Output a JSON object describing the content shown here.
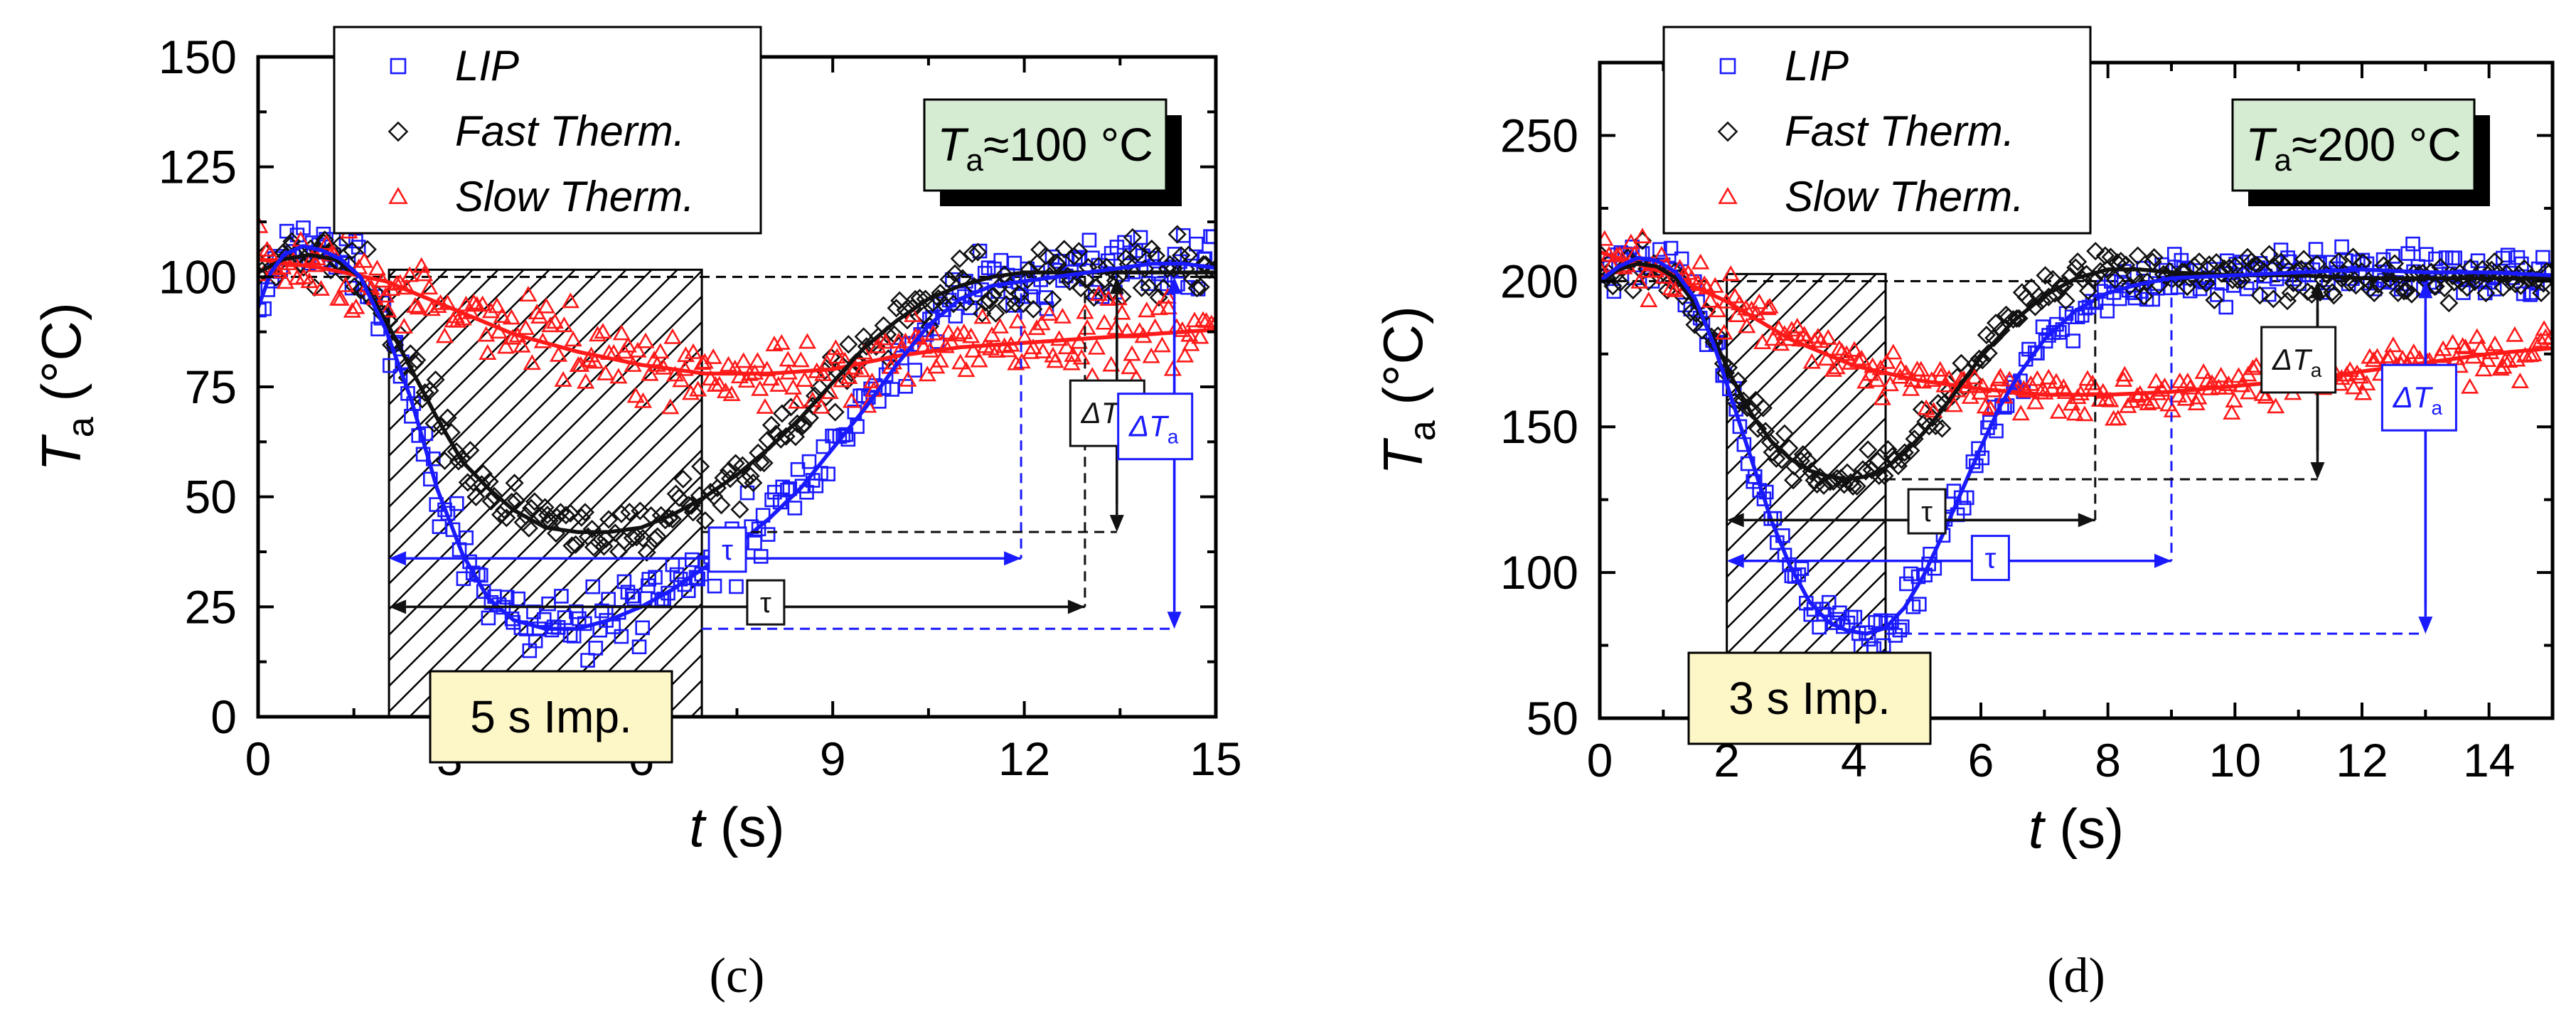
{
  "colors": {
    "lip": "#1a1aff",
    "fast": "#111111",
    "slow": "#ff1a1a",
    "box_green": "#d5ecd2",
    "box_yellow": "#fdf6c7"
  },
  "chart_data": [
    {
      "type": "scatter",
      "panel_label": "(c)",
      "xlabel_symbol": "t",
      "xlabel_unit": "(s)",
      "ylabel_symbol": "T",
      "ylabel_sub": "a",
      "ylabel_unit": "(°C)",
      "xlim": [
        0,
        15
      ],
      "ylim": [
        0,
        150
      ],
      "xticks": [
        0,
        3,
        6,
        9,
        12,
        15
      ],
      "yticks": [
        0,
        25,
        50,
        75,
        100,
        125,
        150
      ],
      "legend": [
        "LIP",
        "Fast Therm.",
        "Slow Therm."
      ],
      "title_box": {
        "sym": "T",
        "sub": "a",
        "rest": "≈100 °C"
      },
      "impulse_label": "5 s Imp.",
      "impulse": [
        2.05,
        6.95
      ],
      "reference": 100,
      "series": [
        {
          "name": "LIP",
          "curve": [
            [
              0.0,
              93
            ],
            [
              0.2,
              101
            ],
            [
              0.4,
              105
            ],
            [
              0.7,
              107
            ],
            [
              1.0,
              106
            ],
            [
              1.3,
              104
            ],
            [
              1.6,
              100
            ],
            [
              2.0,
              88
            ],
            [
              2.4,
              72
            ],
            [
              2.8,
              52
            ],
            [
              3.2,
              37
            ],
            [
              3.6,
              27
            ],
            [
              4.0,
              22
            ],
            [
              4.5,
              20
            ],
            [
              5.0,
              20
            ],
            [
              5.5,
              22
            ],
            [
              6.0,
              25
            ],
            [
              6.5,
              29
            ],
            [
              7.0,
              34
            ],
            [
              7.5,
              39
            ],
            [
              8.0,
              45
            ],
            [
              8.5,
              52
            ],
            [
              9.0,
              61
            ],
            [
              9.5,
              70
            ],
            [
              10.0,
              80
            ],
            [
              10.5,
              89
            ],
            [
              11.0,
              95
            ],
            [
              11.5,
              98
            ],
            [
              12.0,
              99
            ],
            [
              12.5,
              100
            ],
            [
              13.0,
              101
            ],
            [
              13.5,
              102
            ],
            [
              14.0,
              103
            ],
            [
              14.5,
              103
            ],
            [
              15.0,
              102
            ]
          ],
          "scatter_amp": 7
        },
        {
          "name": "Fast Therm.",
          "curve": [
            [
              0.0,
              101
            ],
            [
              0.4,
              104
            ],
            [
              0.8,
              105
            ],
            [
              1.2,
              104
            ],
            [
              1.6,
              100
            ],
            [
              2.0,
              90
            ],
            [
              2.4,
              79
            ],
            [
              2.8,
              68
            ],
            [
              3.2,
              58
            ],
            [
              3.6,
              52
            ],
            [
              4.0,
              47
            ],
            [
              4.5,
              43
            ],
            [
              5.0,
              42
            ],
            [
              5.5,
              42
            ],
            [
              6.0,
              43
            ],
            [
              6.5,
              46
            ],
            [
              7.0,
              50
            ],
            [
              7.5,
              55
            ],
            [
              8.0,
              61
            ],
            [
              8.5,
              68
            ],
            [
              9.0,
              76
            ],
            [
              9.5,
              84
            ],
            [
              10.0,
              90
            ],
            [
              10.5,
              95
            ],
            [
              11.0,
              98
            ],
            [
              11.5,
              100
            ],
            [
              12.0,
              101
            ],
            [
              12.5,
              101
            ],
            [
              13.0,
              101
            ],
            [
              13.5,
              101
            ],
            [
              14.0,
              101
            ],
            [
              14.5,
              101
            ],
            [
              15.0,
              101
            ]
          ],
          "scatter_amp": 7
        },
        {
          "name": "Slow Therm.",
          "curve": [
            [
              0.0,
              104
            ],
            [
              1.0,
              102
            ],
            [
              2.0,
              99
            ],
            [
              3.0,
              93
            ],
            [
              4.0,
              87
            ],
            [
              5.0,
              83
            ],
            [
              6.0,
              80
            ],
            [
              7.0,
              78
            ],
            [
              8.0,
              78
            ],
            [
              9.0,
              79
            ],
            [
              10.0,
              82
            ],
            [
              11.0,
              84
            ],
            [
              12.0,
              85
            ],
            [
              13.0,
              86
            ],
            [
              14.0,
              87
            ],
            [
              15.0,
              88
            ]
          ],
          "scatter_amp": 8
        }
      ],
      "annotations": {
        "tau_symbol": "τ",
        "delta_symbol": "ΔT",
        "delta_sub": "a",
        "lip_tau": {
          "y": 36,
          "x1": 2.05,
          "x2": 11.95
        },
        "fast_tau": {
          "y": 25,
          "x1": 2.05,
          "x2": 12.95
        },
        "lip_min": 20,
        "fast_min": 42,
        "lip_dash_x": 11.95,
        "fast_dash_x": 12.95,
        "delta_fast_x": 13.45,
        "delta_lip_x": 14.35,
        "lip_tau_label": [
          7.35,
          38
        ],
        "fast_tau_label": [
          7.95,
          26
        ],
        "delta_fast_label": [
          13.3,
          69
        ],
        "delta_lip_label": [
          14.05,
          66
        ]
      }
    },
    {
      "type": "scatter",
      "panel_label": "(d)",
      "xlabel_symbol": "t",
      "xlabel_unit": "(s)",
      "ylabel_symbol": "T",
      "ylabel_sub": "a",
      "ylabel_unit": "(°C)",
      "xlim": [
        0,
        15
      ],
      "ylim": [
        50,
        275
      ],
      "xticks": [
        0,
        2,
        4,
        6,
        8,
        10,
        12,
        14
      ],
      "yticks": [
        50,
        100,
        150,
        200,
        250
      ],
      "legend": [
        "LIP",
        "Fast Therm.",
        "Slow Therm."
      ],
      "title_box": {
        "sym": "T",
        "sub": "a",
        "rest": "≈200 °C"
      },
      "impulse_label": "3 s Imp.",
      "impulse": [
        2.0,
        4.5
      ],
      "reference": 200,
      "series": [
        {
          "name": "LIP",
          "curve": [
            [
              0.0,
              200
            ],
            [
              0.3,
              205
            ],
            [
              0.6,
              208
            ],
            [
              0.9,
              207
            ],
            [
              1.2,
              203
            ],
            [
              1.5,
              194
            ],
            [
              1.8,
              178
            ],
            [
              2.1,
              158
            ],
            [
              2.4,
              138
            ],
            [
              2.7,
              118
            ],
            [
              3.0,
              102
            ],
            [
              3.3,
              90
            ],
            [
              3.6,
              83
            ],
            [
              3.9,
              80
            ],
            [
              4.2,
              79
            ],
            [
              4.5,
              81
            ],
            [
              4.8,
              88
            ],
            [
              5.1,
              99
            ],
            [
              5.4,
              113
            ],
            [
              5.7,
              128
            ],
            [
              6.0,
              143
            ],
            [
              6.3,
              157
            ],
            [
              6.6,
              168
            ],
            [
              7.0,
              180
            ],
            [
              7.5,
              190
            ],
            [
              8.0,
              196
            ],
            [
              8.5,
              199
            ],
            [
              9.0,
              201
            ],
            [
              10.0,
              202
            ],
            [
              11.0,
              203
            ],
            [
              12.0,
              204
            ],
            [
              13.0,
              203
            ],
            [
              14.0,
              203
            ],
            [
              15.0,
              202
            ]
          ],
          "scatter_amp": 8
        },
        {
          "name": "Fast Therm.",
          "curve": [
            [
              0.0,
              200
            ],
            [
              0.3,
              204
            ],
            [
              0.6,
              206
            ],
            [
              0.9,
              205
            ],
            [
              1.2,
              201
            ],
            [
              1.5,
              192
            ],
            [
              1.8,
              180
            ],
            [
              2.1,
              166
            ],
            [
              2.4,
              154
            ],
            [
              2.7,
              145
            ],
            [
              3.0,
              139
            ],
            [
              3.3,
              135
            ],
            [
              3.6,
              133
            ],
            [
              3.9,
              132
            ],
            [
              4.2,
              133
            ],
            [
              4.5,
              136
            ],
            [
              4.8,
              141
            ],
            [
              5.1,
              148
            ],
            [
              5.4,
              156
            ],
            [
              5.7,
              165
            ],
            [
              6.0,
              174
            ],
            [
              6.5,
              186
            ],
            [
              7.0,
              195
            ],
            [
              7.5,
              201
            ],
            [
              8.0,
              204
            ],
            [
              8.5,
              204
            ],
            [
              9.0,
              203
            ],
            [
              10.0,
              202
            ],
            [
              11.0,
              202
            ],
            [
              12.0,
              201
            ],
            [
              13.0,
              201
            ],
            [
              14.0,
              201
            ],
            [
              15.0,
              201
            ]
          ],
          "scatter_amp": 7
        },
        {
          "name": "Slow Therm.",
          "curve": [
            [
              0.0,
              210
            ],
            [
              1.0,
              203
            ],
            [
              2.0,
              193
            ],
            [
              3.0,
              180
            ],
            [
              4.0,
              171
            ],
            [
              5.0,
              166
            ],
            [
              6.0,
              163
            ],
            [
              7.0,
              161
            ],
            [
              8.0,
              161
            ],
            [
              9.0,
              162
            ],
            [
              10.0,
              164
            ],
            [
              11.0,
              166
            ],
            [
              12.0,
              169
            ],
            [
              13.0,
              172
            ],
            [
              14.0,
              175
            ],
            [
              15.0,
              177
            ]
          ],
          "scatter_amp": 9
        }
      ],
      "annotations": {
        "tau_symbol": "τ",
        "delta_symbol": "ΔT",
        "delta_sub": "a",
        "lip_tau": {
          "y": 104,
          "x1": 2.0,
          "x2": 9.0
        },
        "fast_tau": {
          "y": 118,
          "x1": 2.0,
          "x2": 7.8
        },
        "lip_min": 79,
        "fast_min": 132,
        "lip_dash_x": 9.0,
        "fast_dash_x": 7.8,
        "delta_fast_x": 11.3,
        "delta_lip_x": 13.0,
        "lip_tau_label": [
          6.15,
          105
        ],
        "fast_tau_label": [
          5.15,
          121
        ],
        "delta_fast_label": [
          11.0,
          173
        ],
        "delta_lip_label": [
          12.9,
          160
        ]
      }
    }
  ]
}
